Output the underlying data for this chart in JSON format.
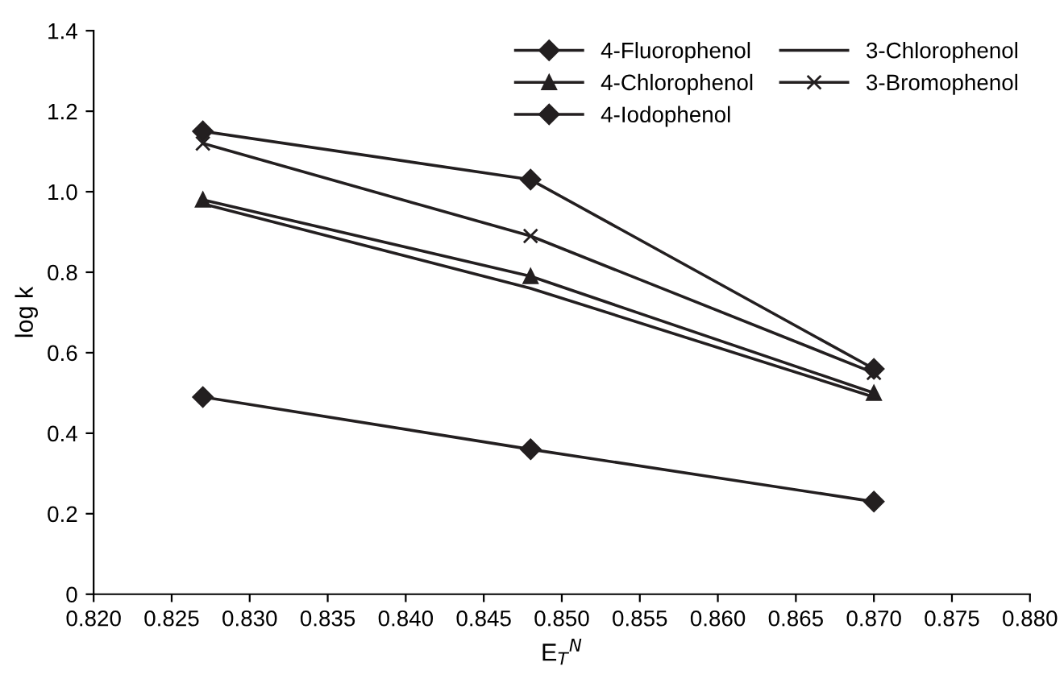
{
  "chart_data": {
    "type": "line",
    "xlabel": "E$_{T}$$^{N}$",
    "ylabel": "log k",
    "x": [
      0.827,
      0.848,
      0.87
    ],
    "series": [
      {
        "name": "4-Fluorophenol",
        "color": "#231f20",
        "marker": "diamond",
        "values": [
          0.49,
          0.36,
          0.23
        ]
      },
      {
        "name": "3-Chlorophenol",
        "color": "#231f20",
        "marker": "none",
        "values": [
          0.97,
          0.76,
          0.49
        ]
      },
      {
        "name": "4-Chlorophenol",
        "color": "#231f20",
        "marker": "triangle",
        "values": [
          0.98,
          0.79,
          0.5
        ]
      },
      {
        "name": "3-Bromophenol",
        "color": "#231f20",
        "marker": "cross",
        "values": [
          1.12,
          0.89,
          0.55
        ]
      },
      {
        "name": "4-Iodophenol",
        "color": "#231f20",
        "marker": "diamond",
        "values": [
          1.15,
          1.03,
          0.56
        ]
      }
    ],
    "xlim": [
      0.82,
      0.88
    ],
    "xticks": [
      {
        "value": 0.82,
        "label": "0.820"
      },
      {
        "value": 0.825,
        "label": "0.825"
      },
      {
        "value": 0.83,
        "label": "0.830"
      },
      {
        "value": 0.835,
        "label": "0.835"
      },
      {
        "value": 0.84,
        "label": "0.840"
      },
      {
        "value": 0.845,
        "label": "0.845"
      },
      {
        "value": 0.85,
        "label": "0.850"
      },
      {
        "value": 0.855,
        "label": "0.855"
      },
      {
        "value": 0.86,
        "label": "0.860"
      },
      {
        "value": 0.865,
        "label": "0.865"
      },
      {
        "value": 0.87,
        "label": "0.870"
      },
      {
        "value": 0.875,
        "label": "0.875"
      },
      {
        "value": 0.88,
        "label": "0.880"
      }
    ],
    "ylim": [
      0,
      1.4
    ],
    "yticks": [
      0,
      0.2,
      0.4,
      0.6,
      0.8,
      {
        "value": 1.0,
        "label": "1.0"
      },
      1.2,
      1.4
    ],
    "grid": false,
    "legend": "top right"
  }
}
